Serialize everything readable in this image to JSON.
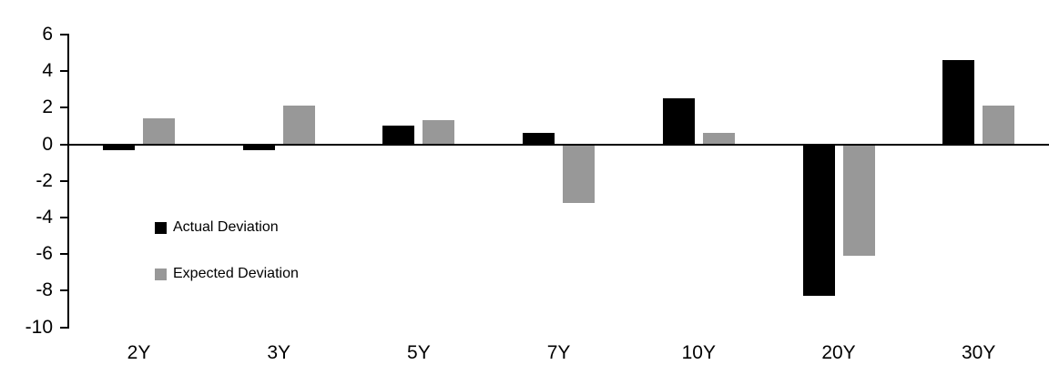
{
  "chart_data": {
    "type": "bar",
    "title": "",
    "xlabel": "",
    "ylabel": "",
    "categories": [
      "2Y",
      "3Y",
      "5Y",
      "7Y",
      "10Y",
      "20Y",
      "30Y"
    ],
    "series": [
      {
        "name": "Actual Deviation",
        "color": "#000000",
        "values": [
          -0.3,
          -0.3,
          1.0,
          0.6,
          2.5,
          -8.3,
          4.6
        ]
      },
      {
        "name": "Expected Deviation",
        "color": "#989898",
        "values": [
          1.4,
          2.1,
          1.3,
          -3.2,
          0.6,
          -6.1,
          2.1
        ]
      }
    ],
    "ylim": [
      -10,
      6
    ],
    "y_ticks": [
      6,
      4,
      2,
      0,
      -2,
      -4,
      -6,
      -8,
      -10
    ],
    "grid": false,
    "legend_position": "inside-left",
    "axis_color": "#000000",
    "background": "#ffffff"
  }
}
